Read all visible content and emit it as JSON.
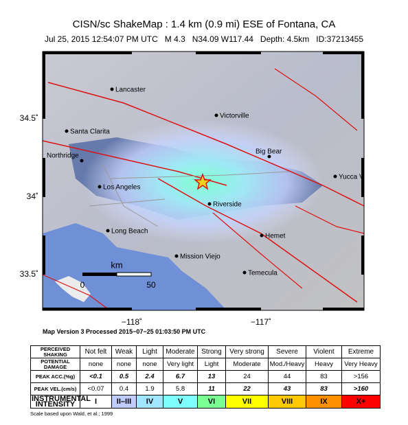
{
  "header": {
    "title": "CISN/sc ShakeMap : 1.4 km (0.9 mi) ESE of Fontana, CA",
    "subtitle": [
      "Jul 25, 2015 12:54:07 PM UTC",
      "M 4.3",
      "N34.09 W117.44",
      "Depth: 4.5km",
      "ID:37213455"
    ]
  },
  "map": {
    "cities": [
      "Lancaster",
      "Victorville",
      "Santa Clarita",
      "Northridge",
      "Big Bear",
      "Yucca V",
      "Los Angeles",
      "Riverside",
      "Long Beach",
      "Hemet",
      "Mission Viejo",
      "Temecula"
    ],
    "lat_labels": [
      "34.5˚",
      "34˚",
      "33.5˚"
    ],
    "lon_labels": [
      "−118˚",
      "−117˚"
    ],
    "scale": {
      "unit": "km",
      "labels": [
        "0",
        "50"
      ]
    }
  },
  "version": "Map Version 3 Processed 2015−07−25 01:03:50 PM UTC",
  "table": {
    "header": [
      "PERCEIVED SHAKING",
      "Not felt",
      "Weak",
      "Light",
      "Moderate",
      "Strong",
      "Very strong",
      "Severe",
      "Violent",
      "Extreme"
    ],
    "rows": [
      {
        "label": "POTENTIAL DAMAGE",
        "cells": [
          "none",
          "none",
          "none",
          "Very light",
          "Light",
          "Moderate",
          "Mod./Heavy",
          "Heavy",
          "Very Heavy"
        ]
      },
      {
        "label": "PEAK ACC.(%g)",
        "cells": [
          "<0.1",
          "0.5",
          "2.4",
          "6.7",
          "13",
          "24",
          "44",
          "83",
          ">156"
        ]
      },
      {
        "label": "PEAK VEL.(cm/s)",
        "cells": [
          "<0.07",
          "0.4",
          "1.9",
          "5.8",
          "11",
          "22",
          "43",
          "83",
          ">160"
        ]
      },
      {
        "label": "INSTRUMENTAL INTENSITY",
        "cells": [
          "I",
          "II–III",
          "IV",
          "V",
          "VI",
          "VII",
          "VIII",
          "IX",
          "X+"
        ]
      }
    ]
  },
  "footnote": "Scale based upon Wald, et al.; 1999"
}
